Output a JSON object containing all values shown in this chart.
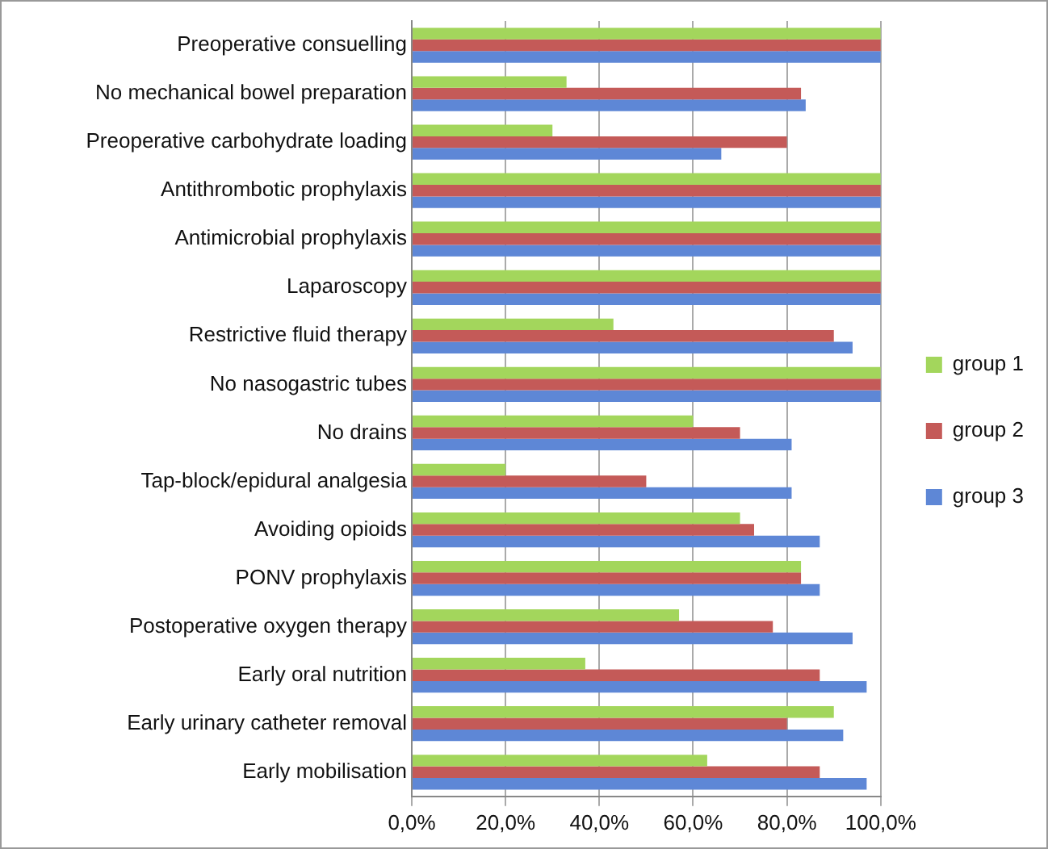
{
  "chart_data": {
    "type": "bar",
    "orientation": "horizontal",
    "categories": [
      "Preoperative consuelling",
      "No mechanical bowel preparation",
      "Preoperative carbohydrate loading",
      "Antithrombotic prophylaxis",
      "Antimicrobial prophylaxis",
      "Laparoscopy",
      "Restrictive fluid therapy",
      "No nasogastric tubes",
      "No drains",
      "Tap-block/epidural analgesia",
      "Avoiding opioids",
      "PONV prophylaxis",
      "Postoperative oxygen therapy",
      "Early oral nutrition",
      "Early urinary catheter removal",
      "Early mobilisation"
    ],
    "series": [
      {
        "name": "group 1",
        "color": "#a3d65c",
        "values": [
          100,
          33,
          30,
          100,
          100,
          100,
          43,
          100,
          60,
          20,
          70,
          83,
          57,
          37,
          90,
          63
        ]
      },
      {
        "name": "group 2",
        "color": "#c45a58",
        "values": [
          100,
          83,
          80,
          100,
          100,
          100,
          90,
          100,
          70,
          50,
          73,
          83,
          77,
          87,
          80,
          87
        ]
      },
      {
        "name": "group 3",
        "color": "#5e87d6",
        "values": [
          100,
          84,
          66,
          100,
          100,
          100,
          94,
          100,
          81,
          81,
          87,
          87,
          94,
          97,
          92,
          97
        ]
      }
    ],
    "xlim": [
      0,
      100
    ],
    "xticks": [
      {
        "value": 0,
        "label": "0,0%"
      },
      {
        "value": 20,
        "label": "20,0%"
      },
      {
        "value": 40,
        "label": "40,0%"
      },
      {
        "value": 60,
        "label": "60,0%"
      },
      {
        "value": 80,
        "label": "80,0%"
      },
      {
        "value": 100,
        "label": "100,0%"
      }
    ],
    "grid": "x",
    "legend": "right"
  }
}
